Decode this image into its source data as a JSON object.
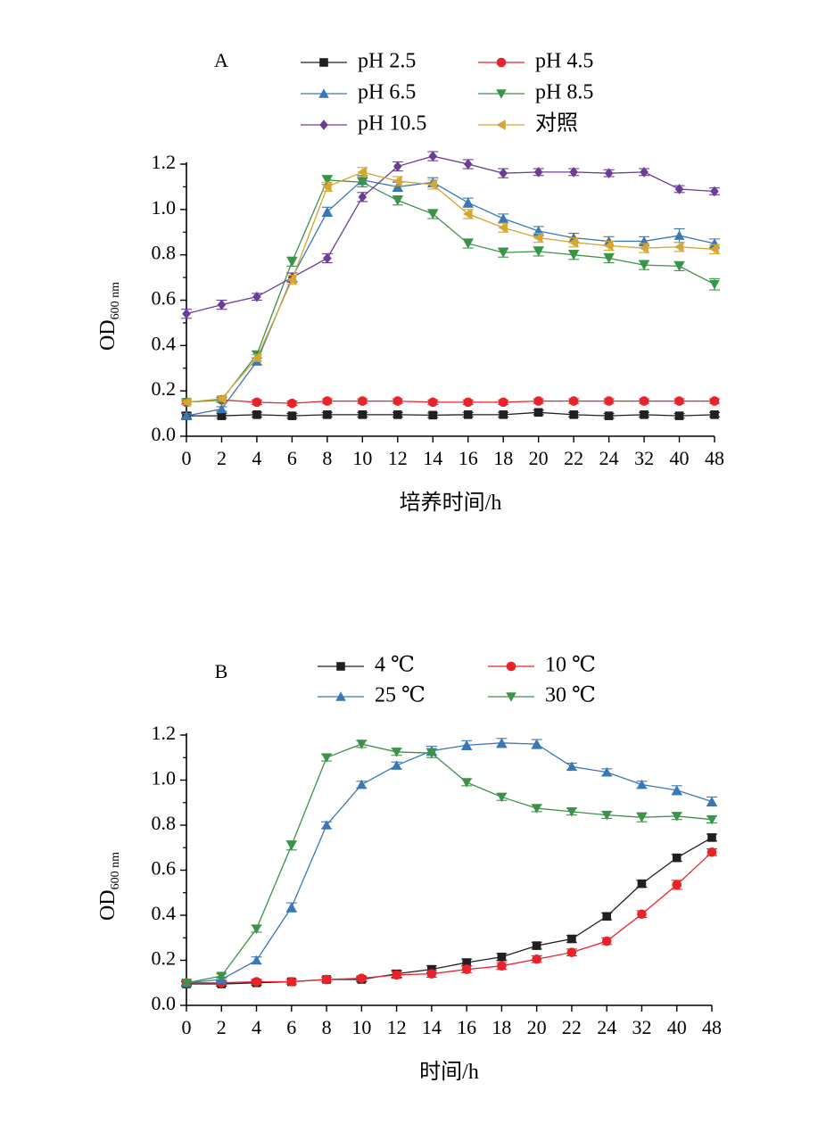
{
  "chart_data": [
    {
      "type": "line",
      "panel_label": "A",
      "ylabel_main": "OD",
      "ylabel_sub": "600 nm",
      "xlabel": "培养时间/h",
      "categories": [
        "0",
        "2",
        "4",
        "6",
        "8",
        "10",
        "12",
        "14",
        "16",
        "18",
        "20",
        "22",
        "24",
        "32",
        "40",
        "48"
      ],
      "ylim": [
        0,
        1.2
      ],
      "yticks": [
        "0.0",
        "0.2",
        "0.4",
        "0.6",
        "0.8",
        "1.0",
        "1.2"
      ],
      "legend_columns": 2,
      "series": [
        {
          "name": "pH 2.5",
          "color": "#231f20",
          "marker": "square",
          "values": [
            0.09,
            0.09,
            0.095,
            0.09,
            0.095,
            0.095,
            0.095,
            0.093,
            0.095,
            0.095,
            0.105,
            0.095,
            0.09,
            0.095,
            0.09,
            0.095
          ],
          "errors": [
            0.015,
            0.01,
            0.01,
            0.01,
            0.01,
            0.01,
            0.01,
            0.01,
            0.01,
            0.01,
            0.01,
            0.01,
            0.01,
            0.01,
            0.01,
            0.01
          ]
        },
        {
          "name": "pH 4.5",
          "color": "#e8242a",
          "marker": "circle",
          "values": [
            0.15,
            0.16,
            0.15,
            0.145,
            0.155,
            0.155,
            0.155,
            0.15,
            0.15,
            0.15,
            0.155,
            0.155,
            0.155,
            0.155,
            0.155,
            0.155
          ],
          "errors": [
            0.01,
            0.01,
            0.01,
            0.01,
            0.01,
            0.01,
            0.01,
            0.01,
            0.01,
            0.01,
            0.01,
            0.01,
            0.01,
            0.01,
            0.01,
            0.01
          ]
        },
        {
          "name": "pH 6.5",
          "color": "#3a78b5",
          "marker": "triangle-up",
          "values": [
            0.09,
            0.12,
            0.33,
            0.7,
            0.99,
            1.13,
            1.1,
            1.12,
            1.03,
            0.96,
            0.905,
            0.875,
            0.86,
            0.86,
            0.885,
            0.85
          ],
          "errors": [
            0.01,
            0.01,
            0.015,
            0.02,
            0.02,
            0.02,
            0.02,
            0.02,
            0.02,
            0.02,
            0.02,
            0.02,
            0.02,
            0.02,
            0.03,
            0.02
          ]
        },
        {
          "name": "pH 8.5",
          "color": "#3b934a",
          "marker": "triangle-down",
          "values": [
            0.15,
            0.16,
            0.36,
            0.77,
            1.13,
            1.12,
            1.04,
            0.98,
            0.85,
            0.81,
            0.815,
            0.8,
            0.785,
            0.755,
            0.75,
            0.67
          ],
          "errors": [
            0.01,
            0.01,
            0.015,
            0.02,
            0.02,
            0.02,
            0.02,
            0.02,
            0.02,
            0.02,
            0.02,
            0.02,
            0.02,
            0.02,
            0.02,
            0.025
          ]
        },
        {
          "name": "pH 10.5",
          "color": "#6a3e97",
          "marker": "diamond",
          "values": [
            0.54,
            0.58,
            0.615,
            0.7,
            0.785,
            1.055,
            1.19,
            1.235,
            1.2,
            1.16,
            1.165,
            1.165,
            1.16,
            1.165,
            1.09,
            1.08
          ],
          "errors": [
            0.02,
            0.02,
            0.015,
            0.02,
            0.02,
            0.02,
            0.02,
            0.02,
            0.02,
            0.02,
            0.015,
            0.015,
            0.015,
            0.015,
            0.015,
            0.015
          ]
        },
        {
          "name": "对照",
          "color": "#d4a632",
          "marker": "triangle-left",
          "values": [
            0.15,
            0.165,
            0.345,
            0.69,
            1.1,
            1.165,
            1.125,
            1.11,
            0.98,
            0.92,
            0.875,
            0.855,
            0.84,
            0.83,
            0.835,
            0.825
          ],
          "errors": [
            0.01,
            0.01,
            0.015,
            0.02,
            0.02,
            0.02,
            0.02,
            0.02,
            0.02,
            0.02,
            0.02,
            0.02,
            0.02,
            0.02,
            0.02,
            0.02
          ]
        }
      ]
    },
    {
      "type": "line",
      "panel_label": "B",
      "ylabel_main": "OD",
      "ylabel_sub": "600 nm",
      "xlabel": "时间/h",
      "categories": [
        "0",
        "2",
        "4",
        "6",
        "8",
        "10",
        "12",
        "14",
        "16",
        "18",
        "20",
        "22",
        "24",
        "32",
        "40",
        "48"
      ],
      "ylim": [
        0,
        1.2
      ],
      "yticks": [
        "0.0",
        "0.2",
        "0.4",
        "0.6",
        "0.8",
        "1.0",
        "1.2"
      ],
      "legend_columns": 2,
      "series": [
        {
          "name": "4 ℃",
          "color": "#231f20",
          "marker": "square",
          "values": [
            0.095,
            0.095,
            0.1,
            0.105,
            0.115,
            0.115,
            0.14,
            0.16,
            0.19,
            0.215,
            0.265,
            0.295,
            0.395,
            0.54,
            0.655,
            0.745
          ],
          "errors": [
            0.01,
            0.01,
            0.01,
            0.01,
            0.01,
            0.01,
            0.015,
            0.015,
            0.015,
            0.015,
            0.015,
            0.015,
            0.015,
            0.015,
            0.015,
            0.015
          ]
        },
        {
          "name": "10 ℃",
          "color": "#e8242a",
          "marker": "circle",
          "values": [
            0.1,
            0.1,
            0.105,
            0.105,
            0.115,
            0.12,
            0.135,
            0.14,
            0.16,
            0.175,
            0.205,
            0.235,
            0.285,
            0.405,
            0.535,
            0.68
          ],
          "errors": [
            0.01,
            0.01,
            0.01,
            0.01,
            0.01,
            0.01,
            0.015,
            0.015,
            0.015,
            0.015,
            0.015,
            0.015,
            0.015,
            0.015,
            0.02,
            0.015
          ]
        },
        {
          "name": "25 ℃",
          "color": "#3a78b5",
          "marker": "triangle-up",
          "values": [
            0.1,
            0.115,
            0.2,
            0.435,
            0.8,
            0.98,
            1.065,
            1.13,
            1.155,
            1.165,
            1.16,
            1.06,
            1.035,
            0.98,
            0.955,
            0.905
          ],
          "errors": [
            0.01,
            0.01,
            0.015,
            0.02,
            0.015,
            0.015,
            0.015,
            0.02,
            0.02,
            0.02,
            0.02,
            0.015,
            0.015,
            0.015,
            0.02,
            0.02
          ]
        },
        {
          "name": "30 ℃",
          "color": "#3b934a",
          "marker": "triangle-down",
          "values": [
            0.1,
            0.13,
            0.34,
            0.71,
            1.1,
            1.16,
            1.125,
            1.12,
            0.99,
            0.925,
            0.875,
            0.86,
            0.845,
            0.835,
            0.84,
            0.825
          ],
          "errors": [
            0.01,
            0.01,
            0.015,
            0.02,
            0.015,
            0.015,
            0.015,
            0.02,
            0.015,
            0.015,
            0.015,
            0.015,
            0.015,
            0.02,
            0.015,
            0.015
          ]
        }
      ]
    }
  ]
}
